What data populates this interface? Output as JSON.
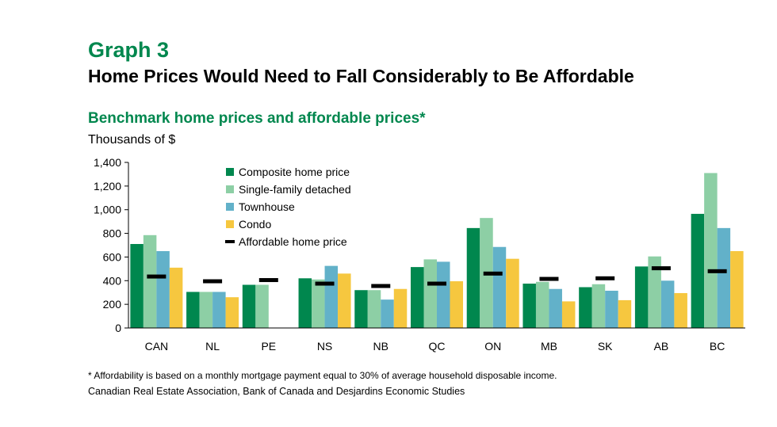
{
  "figure_label": "Graph 3",
  "figure_title": "Home Prices Would Need to Fall Considerably to Be Affordable",
  "footnote": "* Affordability is based on a monthly mortgage payment equal to 30% of average household disposable income.",
  "source": "Canadian Real Estate Association, Bank of Canada and Desjardins Economic Studies",
  "colors": {
    "composite": "#00874e",
    "single_family": "#8dcfa5",
    "townhouse": "#62b1c9",
    "condo": "#f6c73f",
    "affordable": "#000000",
    "title_green": "#00874e"
  },
  "chart_data": {
    "type": "bar",
    "title": "Benchmark home prices and affordable prices*",
    "ylabel": "Thousands of $",
    "xlabel": "",
    "ylim": [
      0,
      1400
    ],
    "yticks": [
      0,
      200,
      400,
      600,
      800,
      "1,000",
      "1,200",
      "1,400"
    ],
    "ytick_values": [
      0,
      200,
      400,
      600,
      800,
      1000,
      1200,
      1400
    ],
    "grid": false,
    "legend_position": "top-center",
    "categories": [
      "CAN",
      "NL",
      "PE",
      "NS",
      "NB",
      "QC",
      "ON",
      "MB",
      "SK",
      "AB",
      "BC"
    ],
    "series": [
      {
        "name": "Composite home price",
        "key": "composite",
        "values": [
          710,
          305,
          365,
          420,
          320,
          515,
          845,
          375,
          345,
          520,
          965
        ]
      },
      {
        "name": "Single-family detached",
        "key": "single_family",
        "values": [
          785,
          305,
          365,
          410,
          320,
          580,
          930,
          390,
          370,
          605,
          1310
        ]
      },
      {
        "name": "Townhouse",
        "key": "townhouse",
        "values": [
          650,
          305,
          null,
          525,
          240,
          560,
          685,
          330,
          315,
          400,
          845
        ]
      },
      {
        "name": "Condo",
        "key": "condo",
        "values": [
          510,
          260,
          null,
          460,
          330,
          395,
          585,
          225,
          235,
          295,
          650
        ]
      }
    ],
    "affordable": {
      "name": "Affordable home price",
      "key": "affordable",
      "values": [
        435,
        395,
        405,
        375,
        355,
        375,
        460,
        415,
        420,
        505,
        480
      ]
    }
  }
}
